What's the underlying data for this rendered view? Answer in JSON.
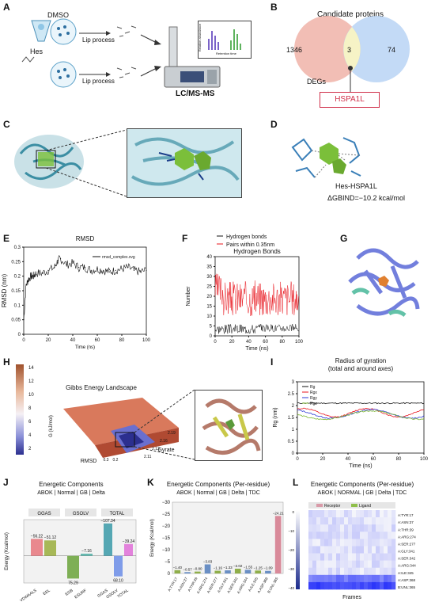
{
  "panels": {
    "a": "A",
    "b": "B",
    "c": "C",
    "d": "D",
    "e": "E",
    "f": "F",
    "g": "G",
    "h": "H",
    "i": "I",
    "j": "J",
    "k": "K",
    "l": "L"
  },
  "a": {
    "dmso": "DMSO",
    "hes": "Hes",
    "lip1": "Lip process",
    "lip2": "Lip process",
    "lcms": "LC/MS-MS",
    "inset_y": "Relative abundance",
    "inset_x": "Retention time"
  },
  "b": {
    "title": "Candidate proteins",
    "left": "1346",
    "mid": "3",
    "right": "74",
    "degs": "DEGs",
    "hspa": "HSPA1L",
    "left_color": "#f0b3a8",
    "right_color": "#b9d3f4",
    "overlap_color": "#f6f3c6"
  },
  "d": {
    "label": "Hes-HSPA1L",
    "gbind": "ΔGBIND=−10.2 kcal/mol"
  },
  "chart_data": [
    {
      "type": "line",
      "panel": "E",
      "title": "RMSD",
      "ylabel": "RMSD (nm)",
      "xlabel": "Time (ns)",
      "legend": "rmsd_complex.xvg",
      "xlim": [
        0,
        100
      ],
      "ylim": [
        0,
        0.3
      ],
      "xticks": [
        "0",
        "20",
        "40",
        "60",
        "80",
        "100"
      ],
      "yticks": [
        "0",
        "0.05",
        "0.1",
        "0.15",
        "0.2",
        "0.25",
        "0.3"
      ],
      "x": [
        0,
        2,
        4,
        6,
        8,
        10,
        15,
        20,
        25,
        28,
        30,
        35,
        40,
        45,
        50,
        55,
        60,
        65,
        70,
        75,
        80,
        85,
        90,
        95,
        100
      ],
      "y": [
        0.05,
        0.17,
        0.19,
        0.2,
        0.2,
        0.21,
        0.21,
        0.22,
        0.23,
        0.255,
        0.26,
        0.24,
        0.245,
        0.23,
        0.23,
        0.22,
        0.225,
        0.22,
        0.215,
        0.22,
        0.225,
        0.23,
        0.22,
        0.215,
        0.22
      ]
    },
    {
      "type": "line",
      "panel": "F",
      "title": "Hydrogen Bonds",
      "ylabel": "Number",
      "xlabel": "Time (ns)",
      "xlim": [
        0,
        100
      ],
      "ylim": [
        0,
        40
      ],
      "xticks": [
        "0",
        "20",
        "40",
        "60",
        "80",
        "100"
      ],
      "yticks": [
        "0",
        "5",
        "10",
        "15",
        "20",
        "25",
        "30",
        "35",
        "40"
      ],
      "series": [
        {
          "name": "Hydrogen bonds",
          "color": "#111111"
        },
        {
          "name": "Pairs within 0.35nm",
          "color": "#e8141c"
        }
      ]
    },
    {
      "type": "line",
      "panel": "I",
      "title": "Radius of gyration",
      "subtitle": "(total and around axes)",
      "ylabel": "Rg (nm)",
      "xlabel": "Time (ns)",
      "xlim": [
        0,
        100
      ],
      "ylim": [
        0,
        3
      ],
      "xticks": [
        "0",
        "20",
        "40",
        "60",
        "80",
        "100"
      ],
      "yticks": [
        "0",
        "0.5",
        "1",
        "1.5",
        "2",
        "2.5",
        "3"
      ],
      "series": [
        {
          "name": "Rg",
          "color": "#111111",
          "level": 2.1
        },
        {
          "name": "Rgx",
          "color": "#e8141c",
          "level": 1.7
        },
        {
          "name": "Rgy",
          "color": "#2f3bd6",
          "level": 1.65
        },
        {
          "name": "Rgz",
          "color": "#7ab52e",
          "level": 1.6
        }
      ]
    },
    {
      "type": "surface",
      "panel": "H",
      "title": "Gibbs Energy Landscape",
      "zlabel": "G (kJ/mol)",
      "xlabel": "RMSD",
      "ylabel": "Gyrate",
      "colorbar_ticks": [
        "14",
        "12",
        "10",
        "8",
        "6",
        "4",
        "2"
      ],
      "xticks": [
        "0.3",
        "0.2"
      ],
      "yticks": [
        "2.11",
        "2.13",
        "2.16",
        "2.19"
      ]
    },
    {
      "type": "bar",
      "panel": "J",
      "title": "Energetic Components",
      "subtitle": "ABOK | Normal | GB | Delta",
      "ylabel": "Energy (Kcal/mol)",
      "groups": [
        "GGAS",
        "GSOLV",
        "TOTAL"
      ],
      "categories": [
        "VDWAALS",
        "EEL",
        "EGB",
        "ESURF",
        "GGAS",
        "GSOLV",
        "TOTAL"
      ],
      "values": [
        -56.22,
        -51.12,
        75.29,
        -7.16,
        -107.34,
        68.1,
        -39.24
      ],
      "colors": [
        "#e8767c",
        "#9aae3c",
        "#6aa33a",
        "#4fb0a6",
        "#3a9aa8",
        "#6b8de8",
        "#e06fd8"
      ]
    },
    {
      "type": "bar",
      "panel": "K",
      "title": "Energetic Components (Per-residue)",
      "subtitle": "ABOK | Normal | GB | Delta | TDC",
      "ylabel": "Energy (Kcal/mol)",
      "yticks": [
        "0",
        "−5",
        "−10",
        "−15",
        "−20",
        "−25",
        "−30"
      ],
      "categories": [
        "A:TYR:17",
        "A:ASN:37",
        "A:THR:39",
        "A:ARG:274",
        "A:SER:277",
        "A:GLY:341",
        "A:SER:342",
        "A:ARG:344",
        "A:ILE:345",
        "A:ASP:368",
        "B:UNL:365"
      ],
      "values": [
        -1.4,
        -0.57,
        -0.8,
        -3.83,
        -1.16,
        -1.33,
        -2.02,
        -1.55,
        -1.25,
        -1.09,
        -24.21
      ],
      "labels": [
        "−1.40",
        "−0.57",
        "−0.80",
        "−3.83",
        "−1.16",
        "−1.33",
        "−2.02",
        "−1.55",
        "−1.25",
        "−1.09",
        "−24.21"
      ]
    },
    {
      "type": "heatmap",
      "panel": "L",
      "title": "Energetic Components (Per-residue)",
      "subtitle": "ABOK | NORMAL | GB | Delta | TDC",
      "xlabel": "Frames",
      "legend": [
        "Receptor",
        "Ligand"
      ],
      "rows": [
        "A:TYR:17",
        "A:ASN:37",
        "A:THR:39",
        "A:ARG:274",
        "A:SER:277",
        "A:GLY:341",
        "A:SER:342",
        "A:ARG:344",
        "A:ILE:345",
        "A:ASP:368",
        "B:UNL:365"
      ],
      "colorbar_ticks": [
        "0",
        "−10",
        "−20",
        "−30",
        "−40"
      ]
    }
  ]
}
